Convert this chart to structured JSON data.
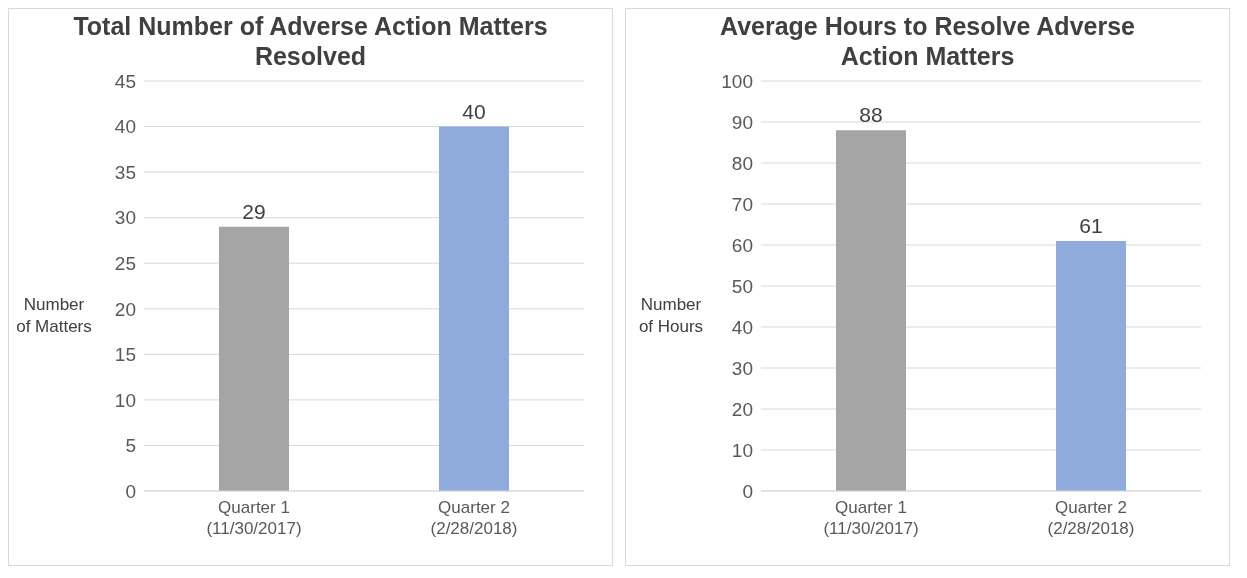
{
  "chart_data": [
    {
      "type": "bar",
      "title": "Total Number of Adverse Action Matters Resolved",
      "ylabel": "Number of Matters",
      "categories": [
        "Quarter 1\n(11/30/2017)",
        "Quarter 2\n(2/28/2018)"
      ],
      "values": [
        29,
        40
      ],
      "colors": [
        "#a5a5a5",
        "#8faadc"
      ],
      "ylim": [
        0,
        45
      ],
      "yticks": [
        0,
        5,
        10,
        15,
        20,
        25,
        30,
        35,
        40,
        45
      ],
      "grid": "y",
      "data_labels": true
    },
    {
      "type": "bar",
      "title": "Average Hours to Resolve Adverse Action Matters",
      "ylabel": "Number of Hours",
      "categories": [
        "Quarter 1\n(11/30/2017)",
        "Quarter 2\n(2/28/2018)"
      ],
      "values": [
        88,
        61
      ],
      "colors": [
        "#a5a5a5",
        "#8faadc"
      ],
      "ylim": [
        0,
        100
      ],
      "yticks": [
        0,
        10,
        20,
        30,
        40,
        50,
        60,
        70,
        80,
        90,
        100
      ],
      "grid": "y",
      "data_labels": true
    }
  ]
}
